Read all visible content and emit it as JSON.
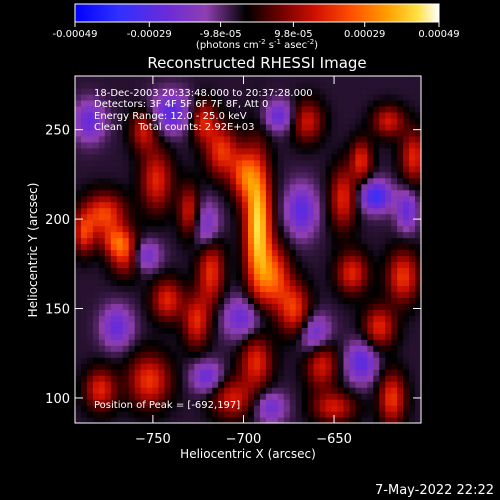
{
  "colorbar": {
    "ticks": [
      {
        "label": "-0.00049",
        "value": -0.00049
      },
      {
        "label": "-0.00029",
        "value": -0.00029
      },
      {
        "label": "-9.8e-05",
        "value": -9.8e-05
      },
      {
        "label": "9.8e-05",
        "value": 9.8e-05
      },
      {
        "label": "0.00029",
        "value": 0.00029
      },
      {
        "label": "0.00049",
        "value": 0.00049
      }
    ],
    "range": [
      -0.00049,
      0.00049
    ],
    "unit_text": "(photons cm",
    "unit_exp1": "-2",
    "unit_mid": " s",
    "unit_exp2": "-1",
    "unit_end": " asec",
    "unit_exp3": "-2",
    "unit_close": ")"
  },
  "footer": {
    "date": "7-May-2022 22:22"
  },
  "chart_data": {
    "type": "heatmap",
    "title": "Reconstructed RHESSI Image",
    "xlabel": "Heliocentric X (arcsec)",
    "ylabel": "Heliocentric Y (arcsec)",
    "xlim": [
      -793,
      -602
    ],
    "ylim": [
      86,
      280
    ],
    "xticks": [
      {
        "label": "−750",
        "value": -750
      },
      {
        "label": "−700",
        "value": -700
      },
      {
        "label": "−650",
        "value": -650
      }
    ],
    "yticks": [
      {
        "label": "100",
        "value": 100
      },
      {
        "label": "150",
        "value": 150
      },
      {
        "label": "200",
        "value": 200
      },
      {
        "label": "250",
        "value": 250
      }
    ],
    "annotations": [
      "18-Dec-2003 20:33:48.000 to 20:37:28.000",
      "Detectors: 3F 4F 5F 6F 7F 8F, Att 0",
      "Energy Range: 12.0 - 25.0 keV",
      "Clean     Total counts: 2.92E+03"
    ],
    "peak_text": "Position of Peak = [-692,197]",
    "peak": {
      "x": -692,
      "y": 197
    },
    "sources": [
      {
        "x": -692,
        "y": 197,
        "sx": 5,
        "sy": 26,
        "a": 1.0
      },
      {
        "x": -700,
        "y": 225,
        "sx": 5,
        "sy": 10,
        "a": 0.55
      },
      {
        "x": -683,
        "y": 168,
        "sx": 6,
        "sy": 12,
        "a": 0.6
      },
      {
        "x": -718,
        "y": 172,
        "sx": 5,
        "sy": 14,
        "a": 0.55
      },
      {
        "x": -712,
        "y": 238,
        "sx": 6,
        "sy": 10,
        "a": 0.55
      },
      {
        "x": -722,
        "y": 255,
        "sx": 5,
        "sy": 8,
        "a": 0.5
      },
      {
        "x": -748,
        "y": 222,
        "sx": 6,
        "sy": 12,
        "a": 0.5
      },
      {
        "x": -755,
        "y": 250,
        "sx": 5,
        "sy": 8,
        "a": 0.45
      },
      {
        "x": -777,
        "y": 203,
        "sx": 8,
        "sy": 8,
        "a": 0.6
      },
      {
        "x": -770,
        "y": 188,
        "sx": 6,
        "sy": 6,
        "a": 0.45
      },
      {
        "x": -788,
        "y": 192,
        "sx": 4,
        "sy": 8,
        "a": 0.5
      },
      {
        "x": -765,
        "y": 180,
        "sx": 6,
        "sy": 8,
        "a": 0.5
      },
      {
        "x": -742,
        "y": 155,
        "sx": 6,
        "sy": 8,
        "a": 0.5
      },
      {
        "x": -752,
        "y": 110,
        "sx": 8,
        "sy": 10,
        "a": 0.55
      },
      {
        "x": -779,
        "y": 105,
        "sx": 6,
        "sy": 8,
        "a": 0.5
      },
      {
        "x": -726,
        "y": 143,
        "sx": 5,
        "sy": 10,
        "a": 0.5
      },
      {
        "x": -693,
        "y": 120,
        "sx": 6,
        "sy": 10,
        "a": 0.5
      },
      {
        "x": -706,
        "y": 100,
        "sx": 8,
        "sy": 8,
        "a": 0.45
      },
      {
        "x": -672,
        "y": 150,
        "sx": 6,
        "sy": 10,
        "a": 0.55
      },
      {
        "x": -657,
        "y": 120,
        "sx": 6,
        "sy": 10,
        "a": 0.5
      },
      {
        "x": -618,
        "y": 100,
        "sx": 5,
        "sy": 10,
        "a": 0.55
      },
      {
        "x": -645,
        "y": 212,
        "sx": 5,
        "sy": 12,
        "a": 0.5
      },
      {
        "x": -635,
        "y": 233,
        "sx": 4,
        "sy": 8,
        "a": 0.5
      },
      {
        "x": -606,
        "y": 235,
        "sx": 5,
        "sy": 10,
        "a": 0.5
      },
      {
        "x": -612,
        "y": 168,
        "sx": 6,
        "sy": 10,
        "a": 0.55
      },
      {
        "x": -625,
        "y": 140,
        "sx": 6,
        "sy": 8,
        "a": 0.5
      },
      {
        "x": -640,
        "y": 170,
        "sx": 6,
        "sy": 8,
        "a": 0.5
      },
      {
        "x": -650,
        "y": 95,
        "sx": 8,
        "sy": 6,
        "a": 0.45
      },
      {
        "x": -620,
        "y": 255,
        "sx": 6,
        "sy": 6,
        "a": 0.45
      },
      {
        "x": -665,
        "y": 255,
        "sx": 6,
        "sy": 8,
        "a": 0.45
      },
      {
        "x": -730,
        "y": 205,
        "sx": 4,
        "sy": 10,
        "a": 0.45
      },
      {
        "x": -627,
        "y": 213,
        "sx": 6,
        "sy": 6,
        "a": -0.6
      },
      {
        "x": -668,
        "y": 205,
        "sx": 6,
        "sy": 10,
        "a": -0.45
      },
      {
        "x": -740,
        "y": 260,
        "sx": 8,
        "sy": 8,
        "a": -0.45
      },
      {
        "x": -720,
        "y": 195,
        "sx": 5,
        "sy": 10,
        "a": -0.4
      },
      {
        "x": -755,
        "y": 180,
        "sx": 6,
        "sy": 6,
        "a": -0.4
      },
      {
        "x": -700,
        "y": 145,
        "sx": 8,
        "sy": 8,
        "a": -0.4
      },
      {
        "x": -660,
        "y": 135,
        "sx": 6,
        "sy": 8,
        "a": -0.45
      },
      {
        "x": -635,
        "y": 120,
        "sx": 6,
        "sy": 8,
        "a": -0.45
      },
      {
        "x": -720,
        "y": 112,
        "sx": 6,
        "sy": 6,
        "a": -0.4
      },
      {
        "x": -770,
        "y": 140,
        "sx": 6,
        "sy": 8,
        "a": -0.4
      },
      {
        "x": -785,
        "y": 255,
        "sx": 6,
        "sy": 8,
        "a": -0.4
      },
      {
        "x": -680,
        "y": 258,
        "sx": 6,
        "sy": 6,
        "a": -0.4
      },
      {
        "x": -610,
        "y": 205,
        "sx": 4,
        "sy": 8,
        "a": -0.4
      },
      {
        "x": -685,
        "y": 95,
        "sx": 6,
        "sy": 6,
        "a": -0.35
      }
    ]
  }
}
